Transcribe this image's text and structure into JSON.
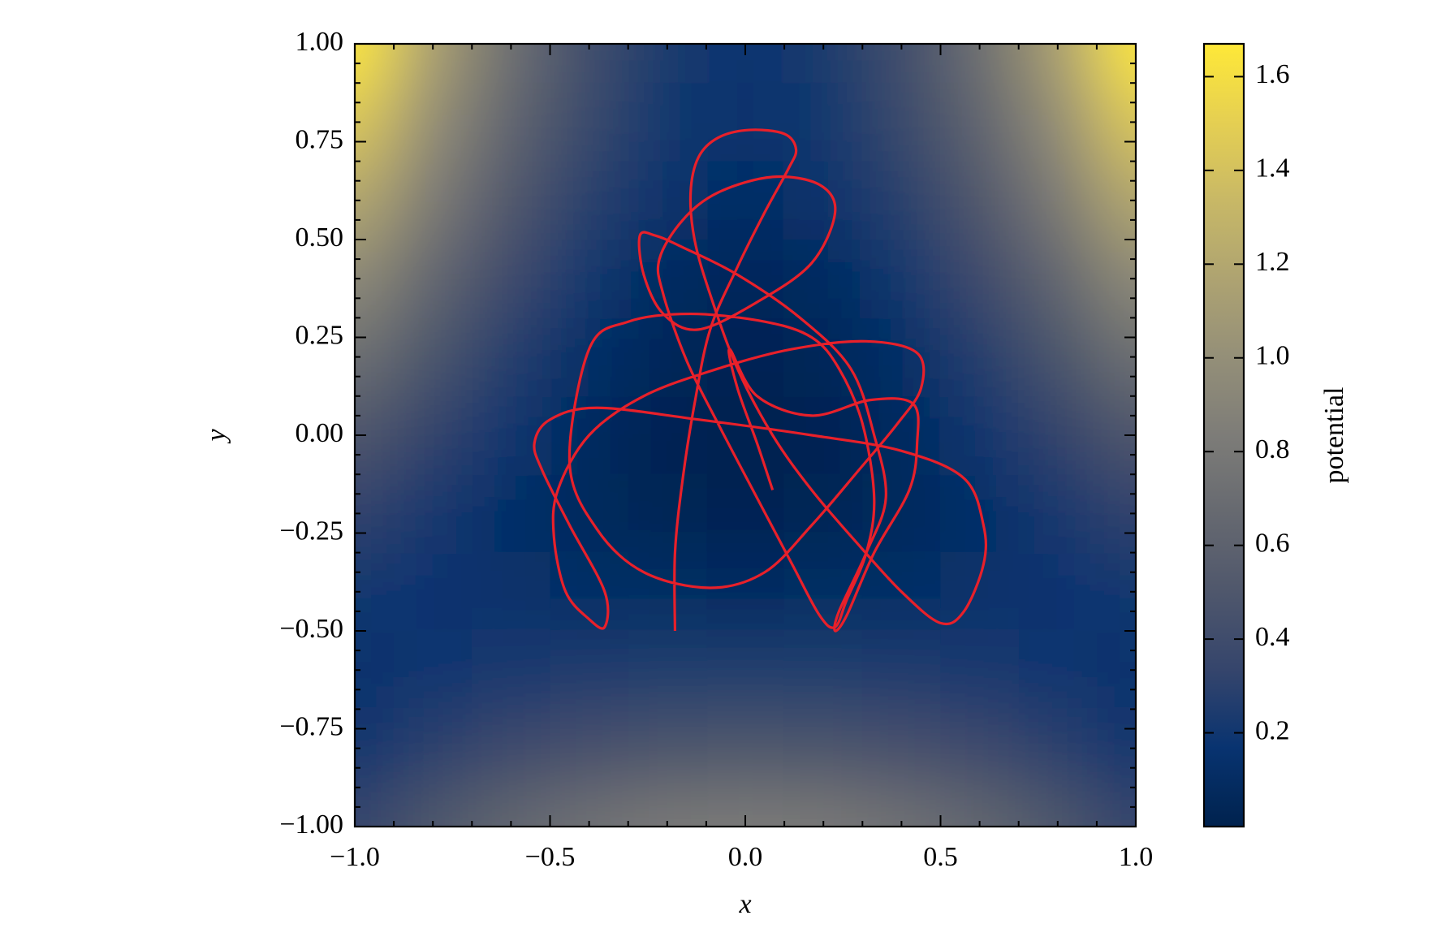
{
  "chart_data": {
    "type": "heatmap",
    "xlabel": "x",
    "ylabel": "y",
    "colorbar_label": "potential",
    "colormap": "cividis",
    "clim": [
      0,
      1.67
    ],
    "x": [
      -1,
      -0.8,
      -0.6,
      -0.4,
      -0.2,
      0,
      0.2,
      0.4,
      0.6,
      0.8,
      1
    ],
    "y": [
      1,
      0.8,
      0.6,
      0.4,
      0.2,
      0,
      -0.2,
      -0.4,
      -0.6,
      -0.8,
      -1
    ],
    "z": [
      [
        1.67,
        1.13,
        0.71,
        0.41,
        0.23,
        0.17,
        0.23,
        0.41,
        0.71,
        1.13,
        1.67
      ],
      [
        1.45,
        0.98,
        0.62,
        0.36,
        0.2,
        0.15,
        0.2,
        0.36,
        0.62,
        0.98,
        1.45
      ],
      [
        1.21,
        0.81,
        0.5,
        0.28,
        0.15,
        0.11,
        0.15,
        0.28,
        0.5,
        0.81,
        1.21
      ],
      [
        0.96,
        0.63,
        0.38,
        0.2,
        0.09,
        0.06,
        0.09,
        0.2,
        0.38,
        0.63,
        0.96
      ],
      [
        0.72,
        0.47,
        0.27,
        0.13,
        0.05,
        0.02,
        0.05,
        0.13,
        0.27,
        0.47,
        0.72
      ],
      [
        0.5,
        0.32,
        0.18,
        0.08,
        0.02,
        0,
        0.02,
        0.08,
        0.18,
        0.32,
        0.5
      ],
      [
        0.32,
        0.21,
        0.13,
        0.07,
        0.03,
        0.02,
        0.03,
        0.07,
        0.13,
        0.21,
        0.32
      ],
      [
        0.2,
        0.17,
        0.14,
        0.12,
        0.11,
        0.1,
        0.11,
        0.12,
        0.14,
        0.17,
        0.2
      ],
      [
        0.15,
        0.19,
        0.22,
        0.24,
        0.25,
        0.25,
        0.25,
        0.24,
        0.22,
        0.19,
        0.15
      ],
      [
        0.19,
        0.3,
        0.38,
        0.44,
        0.48,
        0.49,
        0.48,
        0.44,
        0.38,
        0.3,
        0.19
      ],
      [
        0.33,
        0.51,
        0.65,
        0.75,
        0.81,
        0.83,
        0.81,
        0.75,
        0.65,
        0.51,
        0.33
      ]
    ],
    "xlim": [
      -1,
      1
    ],
    "ylim": [
      -1,
      1
    ],
    "xticks": [
      {
        "value": -1,
        "label": "−1.0"
      },
      {
        "value": -0.5,
        "label": "−0.5"
      },
      {
        "value": 0,
        "label": "0.0"
      },
      0.5,
      {
        "value": 1,
        "label": "1.0"
      }
    ],
    "yticks": [
      {
        "value": -1,
        "label": "−1.00"
      },
      {
        "value": -0.75,
        "label": "−0.75"
      },
      {
        "value": -0.5,
        "label": "−0.50"
      },
      {
        "value": -0.25,
        "label": "−0.25"
      },
      {
        "value": 0,
        "label": "0.00"
      },
      0.25,
      {
        "value": 0.5,
        "label": "0.50"
      },
      0.75,
      {
        "value": 1,
        "label": "1.00"
      }
    ],
    "xminorticks": [
      -0.9,
      -0.8,
      -0.7,
      -0.6,
      -0.4,
      -0.3,
      -0.2,
      -0.1,
      0.1,
      0.2,
      0.3,
      0.4,
      0.6,
      0.7,
      0.8,
      0.9
    ],
    "yminorticks": [
      -0.95,
      -0.9,
      -0.85,
      -0.8,
      -0.7,
      -0.65,
      -0.6,
      -0.55,
      -0.45,
      -0.4,
      -0.35,
      -0.3,
      -0.2,
      -0.15,
      -0.1,
      -0.05,
      0.05,
      0.1,
      0.15,
      0.2,
      0.3,
      0.35,
      0.4,
      0.45,
      0.55,
      0.6,
      0.65,
      0.7,
      0.8,
      0.85,
      0.9,
      0.95
    ],
    "cticks": [
      0.2,
      0.4,
      0.6,
      0.8,
      {
        "value": 1,
        "label": "1.0"
      },
      1.2,
      1.4,
      1.6
    ],
    "line": {
      "color": "#e8202a",
      "x": [
        -0.18,
        -0.18,
        -0.16,
        -0.13,
        -0.09,
        -0.02,
        0.05,
        0.11,
        0.13,
        0.1,
        0.01,
        -0.07,
        -0.12,
        -0.14,
        -0.13,
        -0.09,
        -0.02,
        0.07,
        0.17,
        0.29,
        0.4,
        0.5,
        0.56,
        0.61,
        0.61,
        0.56,
        0.4,
        0.17,
        -0.12,
        -0.38,
        -0.5,
        -0.54,
        -0.52,
        -0.45,
        -0.36,
        -0.36,
        -0.4,
        -0.46,
        -0.49,
        -0.48,
        -0.4,
        -0.26,
        -0.07,
        0.12,
        0.31,
        0.44,
        0.45,
        0.39,
        0.29,
        0.17,
        0.05,
        -0.09,
        -0.26,
        -0.38,
        -0.45,
        -0.4,
        -0.3,
        -0.14,
        0.05,
        0.17,
        0.24,
        0.3,
        0.33,
        0.31,
        0.26,
        0.23,
        0.19,
        0.12,
        0.03,
        -0.07,
        -0.15,
        -0.21,
        -0.22,
        -0.16,
        -0.07,
        0.07,
        0.19,
        0.23,
        0.17,
        0.03,
        -0.12,
        -0.21,
        -0.26,
        -0.27,
        -0.23,
        -0.16,
        -0.02,
        0.14,
        0.27,
        0.33,
        0.36,
        0.31,
        0.24,
        0.23,
        0.26,
        0.33,
        0.42,
        0.44,
        0.43,
        0.32,
        0.17,
        0.03,
        -0.04,
        -0.02,
        0.03,
        0.07
      ],
      "y": [
        -0.5,
        -0.3,
        -0.11,
        0.08,
        0.27,
        0.43,
        0.57,
        0.68,
        0.73,
        0.77,
        0.78,
        0.76,
        0.71,
        0.62,
        0.5,
        0.36,
        0.17,
        0.0,
        -0.14,
        -0.28,
        -0.4,
        -0.48,
        -0.45,
        -0.33,
        -0.23,
        -0.11,
        -0.04,
        0.0,
        0.04,
        0.07,
        0.04,
        -0.02,
        -0.09,
        -0.23,
        -0.4,
        -0.49,
        -0.47,
        -0.4,
        -0.26,
        -0.14,
        0.0,
        0.1,
        0.17,
        0.22,
        0.24,
        0.21,
        0.12,
        0.03,
        -0.09,
        -0.23,
        -0.35,
        -0.39,
        -0.35,
        -0.24,
        -0.07,
        0.22,
        0.29,
        0.31,
        0.29,
        0.25,
        0.17,
        0.03,
        -0.16,
        -0.3,
        -0.42,
        -0.49,
        -0.46,
        -0.33,
        -0.16,
        0.03,
        0.19,
        0.36,
        0.45,
        0.55,
        0.62,
        0.66,
        0.64,
        0.57,
        0.44,
        0.34,
        0.27,
        0.31,
        0.41,
        0.51,
        0.51,
        0.48,
        0.41,
        0.3,
        0.17,
        0.0,
        -0.16,
        -0.3,
        -0.45,
        -0.5,
        -0.46,
        -0.3,
        -0.14,
        -0.02,
        0.08,
        0.09,
        0.05,
        0.1,
        0.22,
        0.12,
        -0.02,
        -0.14
      ]
    }
  }
}
